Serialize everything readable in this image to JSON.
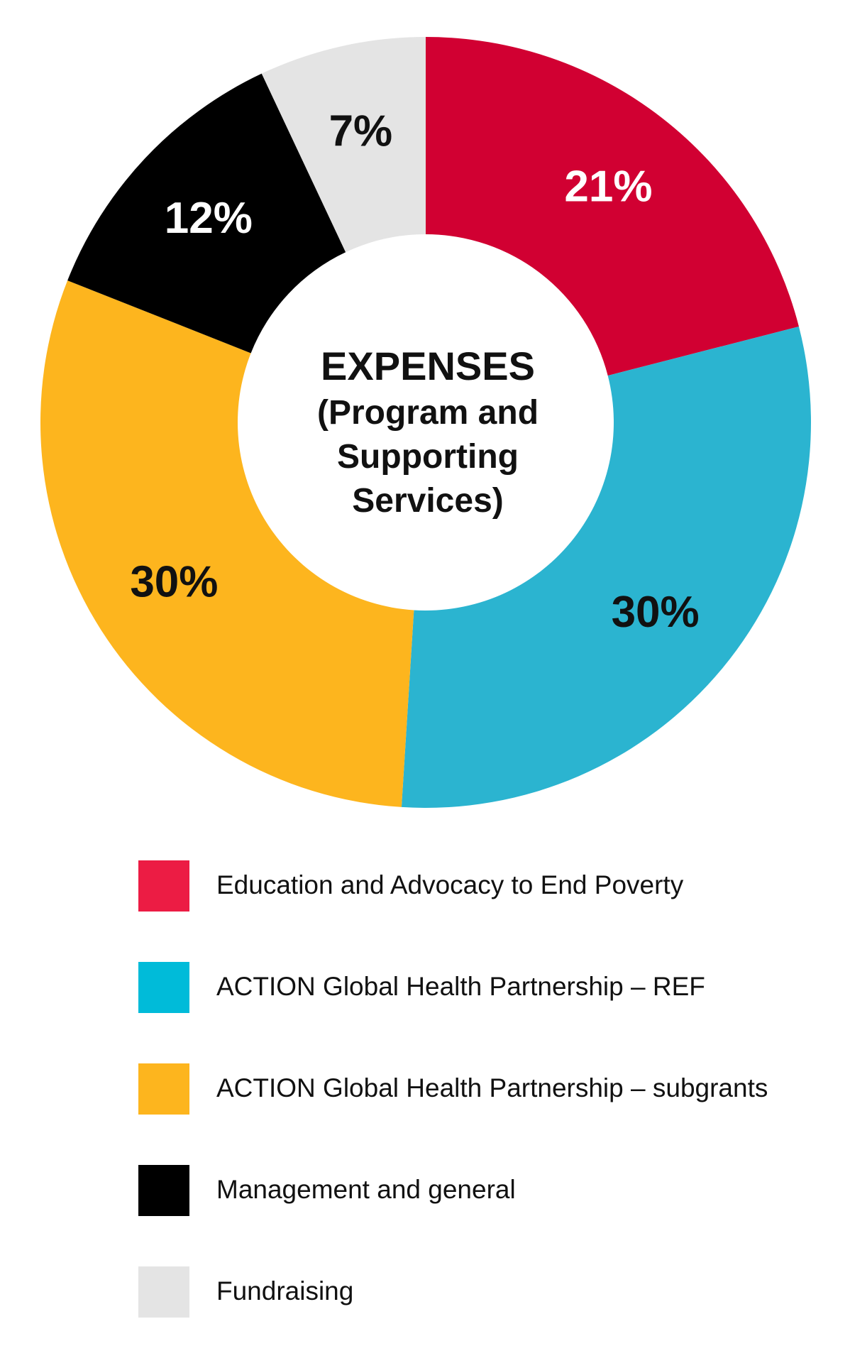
{
  "chart_data": {
    "type": "pie",
    "center_title": "EXPENSES",
    "center_subtitle_lines": [
      "(Program and",
      "Supporting",
      "Services)"
    ],
    "slices": [
      {
        "label": "Education and Advocacy to End Poverty",
        "value": 21,
        "value_label": "21%",
        "color": "#D10032",
        "legend_color": "#EC1C44",
        "text_color": "#ffffff"
      },
      {
        "label": "ACTION Global Health Partnership – REF",
        "value": 30,
        "value_label": "30%",
        "color": "#2BB4D0",
        "legend_color": "#00BBD9",
        "text_color": "#111111"
      },
      {
        "label": "ACTION Global Health Partnership – subgrants",
        "value": 30,
        "value_label": "30%",
        "color": "#FDB51E",
        "legend_color": "#FDB51E",
        "text_color": "#111111"
      },
      {
        "label": "Management and general",
        "value": 12,
        "value_label": "12%",
        "color": "#000000",
        "legend_color": "#000000",
        "text_color": "#ffffff"
      },
      {
        "label": "Fundraising",
        "value": 7,
        "value_label": "7%",
        "color": "#E4E4E4",
        "legend_color": "#E4E4E4",
        "text_color": "#111111"
      }
    ],
    "legend_position": "bottom"
  }
}
